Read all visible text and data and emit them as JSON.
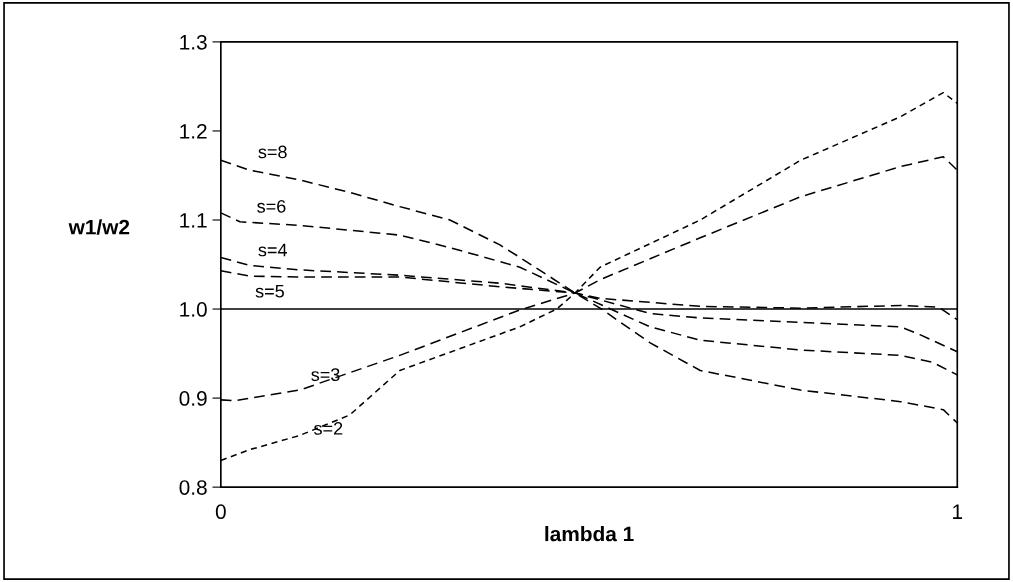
{
  "chart_data": {
    "type": "line",
    "xlabel": "lambda 1",
    "ylabel": "w1/w2",
    "xlim": [
      0,
      1
    ],
    "xticks": [
      0,
      1
    ],
    "ylim": [
      0.8,
      1.3
    ],
    "yticks": [
      0.8,
      0.9,
      {
        "value": 1.0,
        "label": "1.0"
      },
      1.1,
      1.2,
      1.3
    ],
    "grid": false,
    "legend": false,
    "marker": "none",
    "line_style": "dashed",
    "ref_lines": [
      {
        "axis": "y",
        "value": 1.0,
        "color": "#000000",
        "line_style": "solid"
      }
    ],
    "series": [
      {
        "name": "s=8",
        "color": "#000000",
        "x": [
          0,
          0.039,
          0.107,
          0.175,
          0.243,
          0.311,
          0.379,
          0.406,
          0.481,
          0.515,
          0.583,
          0.651,
          0.787,
          0.923,
          0.981,
          1
        ],
        "values": [
          1.167,
          1.156,
          1.145,
          1.131,
          1.115,
          1.1,
          1.072,
          1.058,
          1.018,
          1.001,
          0.962,
          0.931,
          0.909,
          0.896,
          0.887,
          0.872
        ]
      },
      {
        "name": "s=6",
        "color": "#000000",
        "x": [
          0,
          0.026,
          0.107,
          0.243,
          0.311,
          0.406,
          0.481,
          0.583,
          0.651,
          0.787,
          0.923,
          0.967,
          1
        ],
        "values": [
          1.108,
          1.098,
          1.094,
          1.083,
          1.069,
          1.047,
          1.018,
          0.98,
          0.965,
          0.954,
          0.948,
          0.94,
          0.926
        ]
      },
      {
        "name": "s=4",
        "color": "#000000",
        "x": [
          0,
          0.039,
          0.107,
          0.243,
          0.379,
          0.481,
          0.583,
          0.651,
          0.787,
          0.923,
          0.95,
          1
        ],
        "values": [
          1.058,
          1.049,
          1.044,
          1.038,
          1.029,
          1.018,
          0.995,
          0.99,
          0.985,
          0.98,
          0.971,
          0.952
        ]
      },
      {
        "name": "s=5",
        "color": "#000000",
        "x": [
          0,
          0.039,
          0.107,
          0.243,
          0.379,
          0.481,
          0.515,
          0.651,
          0.787,
          0.923,
          0.975,
          1
        ],
        "values": [
          1.043,
          1.037,
          1.036,
          1.036,
          1.025,
          1.018,
          1.012,
          1.003,
          1.001,
          1.004,
          1.002,
          0.988
        ]
      },
      {
        "name": "s=3",
        "color": "#000000",
        "line_style": "dashed",
        "x": [
          0,
          0.019,
          0.107,
          0.243,
          0.406,
          0.481,
          0.515,
          0.651,
          0.787,
          0.923,
          0.981,
          1
        ],
        "values": [
          0.898,
          0.897,
          0.909,
          0.948,
          0.999,
          1.018,
          1.033,
          1.08,
          1.126,
          1.16,
          1.171,
          1.156
        ]
      },
      {
        "name": "s=2",
        "color": "#000000",
        "line_style": "dotted",
        "x": [
          0,
          0.039,
          0.107,
          0.175,
          0.243,
          0.406,
          0.456,
          0.481,
          0.515,
          0.651,
          0.787,
          0.923,
          0.981,
          1
        ],
        "values": [
          0.83,
          0.842,
          0.858,
          0.881,
          0.931,
          0.98,
          1.0,
          1.018,
          1.047,
          1.1,
          1.167,
          1.216,
          1.243,
          1.231
        ]
      }
    ]
  }
}
